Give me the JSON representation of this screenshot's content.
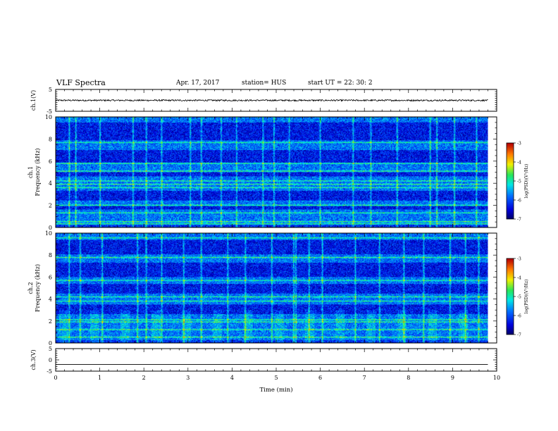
{
  "header": {
    "title": "VLF Spectra",
    "date": "Apr. 17, 2017",
    "station": "station= HUS",
    "start": "start  UT  =   22: 30: 2"
  },
  "chart_data": [
    {
      "type": "line",
      "panel": "ch1-waveform",
      "ylabel": "ch.1(V)",
      "ylim": [
        -5,
        5
      ],
      "yticks": [
        "5",
        "-5"
      ],
      "xlim": [
        0,
        10
      ],
      "signal_level_v": 0.0,
      "noise_amplitude_v": 0.35
    },
    {
      "type": "heatmap",
      "panel": "ch1-spectrogram",
      "ylabel": "ch.1\nFrequency (kHz)",
      "ylabel_line1": "ch.1",
      "ylabel_line2": "Frequency (kHz)",
      "ylim": [
        0,
        10
      ],
      "yticks": [
        "0",
        "2",
        "4",
        "6",
        "8",
        "10"
      ],
      "xlim": [
        0,
        10
      ],
      "data_end_min": 9.8,
      "colorbar": {
        "label": "log(PSD)(V²/Hz)",
        "range": [
          -7,
          -3
        ],
        "ticks": [
          "-3",
          "-4",
          "-5",
          "-6",
          "-7"
        ]
      },
      "bright_bands_khz": [
        0.3,
        0.5,
        1.3,
        2.0,
        3.6,
        3.9,
        4.2,
        5.1,
        5.8,
        7.7
      ],
      "dark_bands_khz": [
        [
          1.6,
          1.9
        ],
        [
          2.4,
          3.3
        ],
        [
          4.6,
          5.0
        ],
        [
          5.9,
          7.0
        ],
        [
          7.9,
          9.5
        ]
      ],
      "spike_times_min": [
        0.3,
        0.45,
        1.0,
        1.75,
        2.05,
        2.4,
        3.05,
        3.3,
        3.75,
        4.1,
        4.7,
        4.95,
        5.3,
        6.0,
        6.75,
        7.15,
        7.75,
        8.5,
        8.65,
        9.05,
        9.55
      ]
    },
    {
      "type": "heatmap",
      "panel": "ch2-spectrogram",
      "ylabel": "ch.2\nFrequency (kHz)",
      "ylabel_line1": "ch.2",
      "ylabel_line2": "Frequency (kHz)",
      "ylim": [
        0,
        10
      ],
      "yticks": [
        "0",
        "2",
        "4",
        "6",
        "8",
        "10"
      ],
      "xlim": [
        0,
        10
      ],
      "data_end_min": 9.8,
      "colorbar": {
        "label": "log(PSD)(V²/Hz)",
        "range": [
          -7,
          -3
        ],
        "ticks": [
          "-3",
          "-4",
          "-5",
          "-6",
          "-7"
        ]
      },
      "bright_bands_khz": [
        0.5,
        1.2,
        1.9,
        2.1,
        3.8,
        4.2,
        5.7,
        7.8,
        9.6
      ],
      "dark_bands_khz": [
        [
          2.6,
          3.5
        ],
        [
          4.5,
          5.4
        ],
        [
          6.0,
          7.3
        ],
        [
          8.1,
          9.4
        ]
      ],
      "spike_times_min": [
        0.3,
        0.55,
        1.05,
        1.85,
        2.05,
        2.4,
        2.9,
        3.3,
        3.9,
        4.3,
        4.9,
        5.4,
        5.45,
        5.75,
        6.05,
        6.8,
        7.35,
        7.9,
        8.35,
        8.95,
        9.3,
        9.6
      ]
    },
    {
      "type": "line",
      "panel": "ch3-waveform",
      "ylabel": "ch.3(V)",
      "ylim": [
        -5,
        5
      ],
      "yticks": [
        "5",
        "0",
        "-5"
      ],
      "xlim": [
        0,
        10
      ],
      "xlabel": "Time  (min)",
      "xticks": [
        "0",
        "1",
        "2",
        "3",
        "4",
        "5",
        "6",
        "7",
        "8",
        "9",
        "10"
      ],
      "signal_level_v": -2.0
    }
  ]
}
